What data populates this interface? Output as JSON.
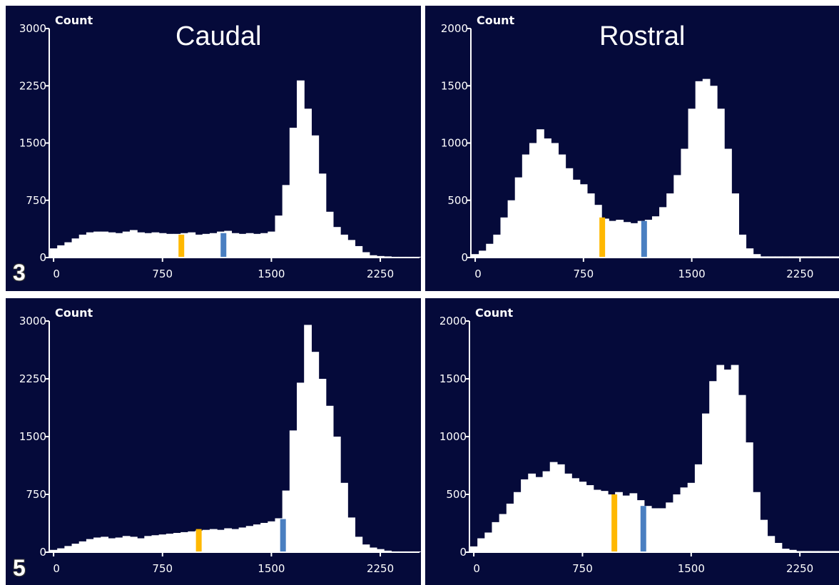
{
  "colors": {
    "background": "#050a3a",
    "bars": "#ffffff",
    "axis": "#ffffff",
    "marker_left": "#ffb800",
    "marker_right": "#4a7fc1"
  },
  "column_titles": {
    "left": "Caudal",
    "right": "Rostral"
  },
  "row_labels": {
    "top": "3",
    "bottom": "5"
  },
  "chart_data": [
    {
      "type": "bar",
      "ylabel": "Count",
      "ylim": [
        0,
        3000
      ],
      "yticks": [
        0,
        750,
        1500,
        2250,
        3000
      ],
      "xlim": [
        -30,
        2520
      ],
      "xticks": [
        0,
        750,
        1500,
        2250
      ],
      "bin_start": -25,
      "bin_width": 50,
      "values": [
        120,
        160,
        200,
        250,
        300,
        330,
        340,
        340,
        330,
        320,
        340,
        360,
        330,
        320,
        330,
        320,
        310,
        310,
        320,
        330,
        300,
        310,
        320,
        340,
        350,
        320,
        310,
        320,
        310,
        320,
        340,
        550,
        950,
        1700,
        2320,
        1950,
        1600,
        1100,
        600,
        400,
        300,
        230,
        150,
        70,
        30,
        20,
        15,
        10,
        10,
        10,
        10
      ],
      "markers": [
        {
          "x": 880,
          "height": 300,
          "color": "#ffb800"
        },
        {
          "x": 1170,
          "height": 320,
          "color": "#4a7fc1"
        }
      ],
      "grid": false
    },
    {
      "type": "bar",
      "ylabel": "Count",
      "ylim": [
        0,
        2000
      ],
      "yticks": [
        0,
        500,
        1000,
        1500,
        2000
      ],
      "xlim": [
        -30,
        2520
      ],
      "xticks": [
        0,
        750,
        1500,
        2250
      ],
      "bin_start": -25,
      "bin_width": 50,
      "values": [
        30,
        60,
        120,
        200,
        350,
        500,
        700,
        900,
        1000,
        1120,
        1040,
        1000,
        900,
        780,
        680,
        640,
        560,
        460,
        340,
        320,
        330,
        310,
        300,
        320,
        330,
        360,
        440,
        560,
        720,
        950,
        1300,
        1540,
        1560,
        1500,
        1300,
        950,
        560,
        200,
        80,
        30,
        10,
        10,
        10,
        10,
        10,
        10,
        10,
        10,
        10,
        10,
        10
      ],
      "markers": [
        {
          "x": 880,
          "height": 350,
          "color": "#ffb800"
        },
        {
          "x": 1170,
          "height": 320,
          "color": "#4a7fc1"
        }
      ],
      "grid": false
    },
    {
      "type": "bar",
      "ylabel": "Count",
      "ylim": [
        0,
        3000
      ],
      "yticks": [
        0,
        750,
        1500,
        2250,
        3000
      ],
      "xlim": [
        -30,
        2520
      ],
      "xticks": [
        0,
        750,
        1500,
        2250
      ],
      "bin_start": -25,
      "bin_width": 50,
      "values": [
        30,
        50,
        80,
        110,
        140,
        170,
        190,
        200,
        180,
        190,
        210,
        200,
        180,
        210,
        220,
        230,
        240,
        250,
        260,
        270,
        280,
        290,
        300,
        290,
        310,
        300,
        320,
        340,
        360,
        380,
        400,
        440,
        800,
        1580,
        2200,
        2950,
        2600,
        2250,
        1900,
        1500,
        900,
        450,
        200,
        100,
        60,
        40,
        20,
        10,
        10,
        10,
        10
      ],
      "markers": [
        {
          "x": 1000,
          "height": 300,
          "color": "#ffb800"
        },
        {
          "x": 1580,
          "height": 430,
          "color": "#4a7fc1"
        }
      ],
      "grid": false
    },
    {
      "type": "bar",
      "ylabel": "Count",
      "ylim": [
        0,
        2000
      ],
      "yticks": [
        0,
        500,
        1000,
        1500,
        2000
      ],
      "xlim": [
        -30,
        2520
      ],
      "xticks": [
        0,
        750,
        1500,
        2250
      ],
      "bin_start": -25,
      "bin_width": 50,
      "values": [
        50,
        120,
        170,
        260,
        330,
        420,
        520,
        630,
        680,
        650,
        700,
        780,
        760,
        680,
        640,
        610,
        580,
        540,
        530,
        500,
        520,
        490,
        510,
        450,
        400,
        380,
        380,
        430,
        500,
        560,
        600,
        760,
        1200,
        1480,
        1620,
        1580,
        1620,
        1360,
        950,
        520,
        280,
        140,
        80,
        30,
        20,
        10,
        10,
        10,
        10,
        10,
        10
      ],
      "markers": [
        {
          "x": 970,
          "height": 500,
          "color": "#ffb800"
        },
        {
          "x": 1170,
          "height": 400,
          "color": "#4a7fc1"
        }
      ],
      "grid": false
    }
  ]
}
